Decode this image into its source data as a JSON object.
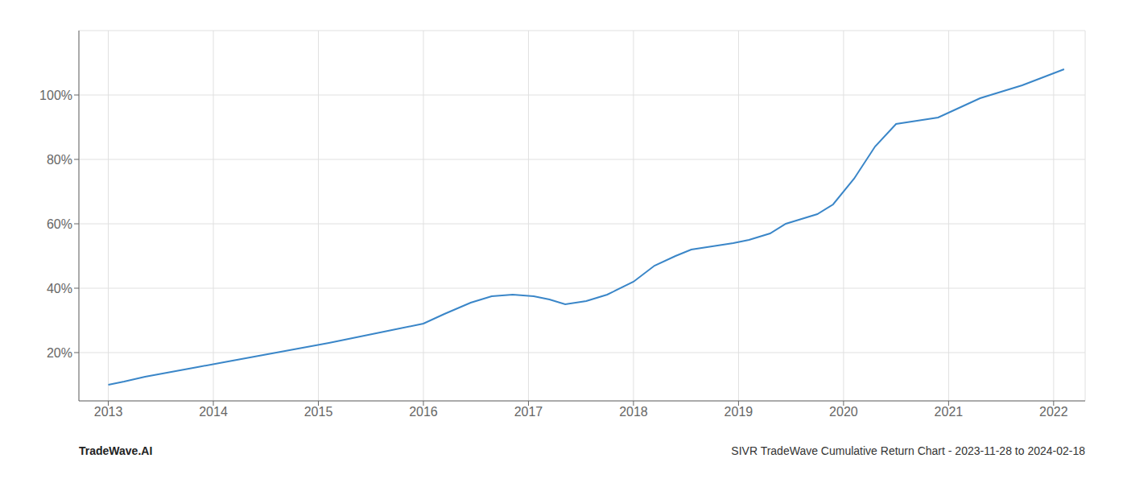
{
  "chart_data": {
    "type": "line",
    "x": [
      2013.0,
      2013.15,
      2013.35,
      2013.6,
      2013.85,
      2014.1,
      2014.35,
      2014.6,
      2014.85,
      2015.1,
      2015.4,
      2015.7,
      2016.0,
      2016.2,
      2016.45,
      2016.65,
      2016.85,
      2017.05,
      2017.2,
      2017.35,
      2017.55,
      2017.75,
      2018.0,
      2018.2,
      2018.4,
      2018.55,
      2018.75,
      2018.95,
      2019.1,
      2019.3,
      2019.45,
      2019.6,
      2019.75,
      2019.9,
      2020.1,
      2020.3,
      2020.5,
      2020.7,
      2020.9,
      2021.1,
      2021.3,
      2021.5,
      2021.7,
      2021.9,
      2022.1
    ],
    "values": [
      10,
      11,
      12.5,
      14,
      15.5,
      17,
      18.5,
      20,
      21.5,
      23,
      25,
      27,
      29,
      32,
      35.5,
      37.5,
      38,
      37.5,
      36.5,
      35,
      36,
      38,
      42,
      47,
      50,
      52,
      53,
      54,
      55,
      57,
      60,
      61.5,
      63,
      66,
      74,
      84,
      91,
      92,
      93,
      96,
      99,
      101,
      103,
      105.5,
      108
    ],
    "color": "#3a86c8",
    "xlim": [
      2012.72,
      2022.3
    ],
    "xticks": [
      2013,
      2014,
      2015,
      2016,
      2017,
      2018,
      2019,
      2020,
      2021,
      2022
    ],
    "ylim": [
      5,
      120
    ],
    "yticks": [
      {
        "value": 20,
        "label": "20%"
      },
      {
        "value": 40,
        "label": "40%"
      },
      {
        "value": 60,
        "label": "60%"
      },
      {
        "value": 80,
        "label": "80%"
      },
      {
        "value": 100,
        "label": "100%"
      }
    ],
    "grid": true,
    "annotations": [
      "TradeWave.AI",
      "SIVR TradeWave Cumulative Return Chart - 2023-11-28 to 2024-02-18"
    ]
  }
}
